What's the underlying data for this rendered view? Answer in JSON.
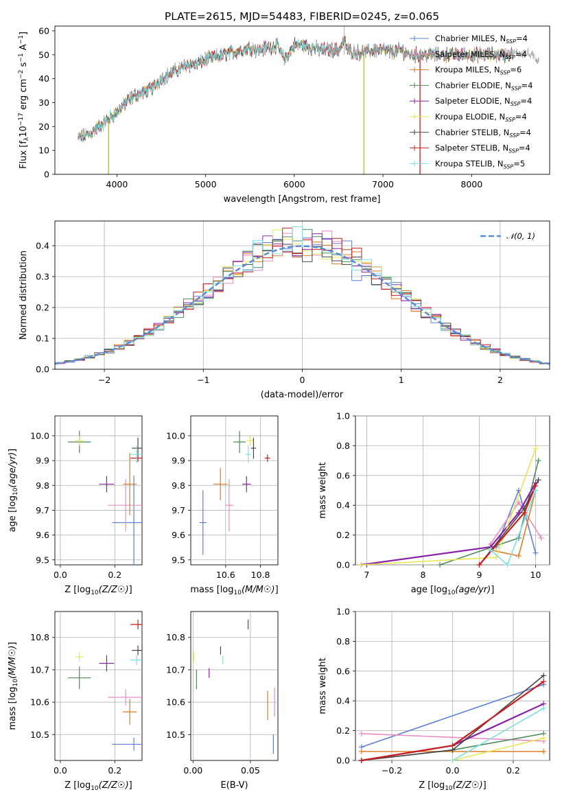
{
  "title": "PLATE=2615, MJD=54483, FIBERID=0245, z=0.065",
  "colors": {
    "Chabrier MILES": "#5b7fd6",
    "Salpeter MILES": "#e98bc4",
    "Kroupa MILES": "#e07b24",
    "Chabrier ELODIE": "#4e8a5a",
    "Salpeter ELODIE": "#8b22a6",
    "Kroupa ELODIE": "#e6e655",
    "Chabrier STELIB": "#444444",
    "Salpeter STELIB": "#c81e1e",
    "Kroupa STELIB": "#7ee0e0"
  },
  "spectrum": {
    "xlabel": "wavelength [Angstrom, rest frame]",
    "ylabel": "Flux [f_λ10^{-17} erg cm^{-2} s^{-1} A^{-1}]",
    "xlim": [
      3300,
      8880
    ],
    "ylim": [
      0,
      62
    ],
    "xticks": [
      4000,
      5000,
      6000,
      7000,
      8000
    ],
    "yticks": [
      0,
      10,
      20,
      30,
      40,
      50,
      60
    ],
    "legend_position": "top-right",
    "legend": [
      {
        "model": "Chabrier MILES",
        "nssp": "4"
      },
      {
        "model": "Salpeter MILES",
        "nssp": "4"
      },
      {
        "model": "Kroupa MILES",
        "nssp": "6"
      },
      {
        "model": "Chabrier ELODIE",
        "nssp": "4"
      },
      {
        "model": "Salpeter ELODIE",
        "nssp": "4"
      },
      {
        "model": "Kroupa ELODIE",
        "nssp": "4"
      },
      {
        "model": "Chabrier STELIB",
        "nssp": "4"
      },
      {
        "model": "Salpeter STELIB",
        "nssp": "4"
      },
      {
        "model": "Kroupa STELIB",
        "nssp": "5"
      }
    ]
  },
  "residuals": {
    "xlabel": "(data-model)/error",
    "ylabel": "Normed distribution",
    "xlim": [
      -2.5,
      2.5
    ],
    "ylim": [
      0,
      0.48
    ],
    "xticks": [
      -2,
      -1,
      0,
      1,
      2
    ],
    "yticks": [
      0.0,
      0.1,
      0.2,
      0.3,
      0.4
    ],
    "legend_label": "𝒩(0, 1)",
    "legend_position": "top-right"
  },
  "chart_data": [
    {
      "type": "line",
      "panel": "spectrum",
      "title": "PLATE=2615, MJD=54483, FIBERID=0245, z=0.065",
      "xlabel": "wavelength [Angstrom, rest frame]",
      "ylabel": "Flux [f_λ10^{-17} erg cm^{-2} s^{-1} A^{-1}]",
      "xlim": [
        3300,
        8880
      ],
      "ylim": [
        0,
        62
      ],
      "x": [
        3560,
        3700,
        3800,
        3900,
        4000,
        4100,
        4200,
        4300,
        4400,
        4500,
        4600,
        4700,
        4800,
        4900,
        5000,
        5100,
        5200,
        5300,
        5400,
        5500,
        5600,
        5700,
        5800,
        5890,
        6000,
        6100,
        6200,
        6300,
        6400,
        6500,
        6563,
        6600,
        6700,
        6800,
        6900,
        7000,
        7100,
        7200,
        7300,
        7400,
        7600,
        7800,
        8000,
        8200,
        8400,
        8600,
        8750
      ],
      "y": [
        15,
        17,
        20,
        23,
        26,
        30,
        33,
        34,
        36,
        40,
        42,
        44,
        46,
        46,
        48,
        49,
        50,
        51,
        52,
        53,
        52,
        53,
        54,
        48,
        54,
        54,
        53,
        52,
        52,
        52,
        56,
        52,
        51,
        51,
        52,
        52,
        51,
        52,
        50,
        50,
        50,
        50,
        50,
        50,
        50,
        51,
        48
      ]
    },
    {
      "type": "bar",
      "panel": "residual-histogram",
      "xlabel": "(data-model)/error",
      "ylabel": "Normed distribution",
      "xlim": [
        -2.5,
        2.5
      ],
      "ylim": [
        0,
        0.48
      ],
      "bin_width": 0.1,
      "reference_curve": "N(0,1)"
    },
    {
      "type": "scatter",
      "panel": "age-vs-Z",
      "xlabel": "Z [log10(Z/Z☉)]",
      "ylabel": "age [log10(age/yr)]",
      "xlim": [
        -0.02,
        0.3
      ],
      "ylim": [
        9.48,
        10.08
      ],
      "points": [
        {
          "model": "Chabrier MILES",
          "x": 0.27,
          "xerr": 0.16,
          "y": 9.65,
          "yerr": 0.38
        },
        {
          "model": "Salpeter MILES",
          "x": 0.24,
          "xerr": 0.13,
          "y": 9.72,
          "yerr": 0.21
        },
        {
          "model": "Kroupa MILES",
          "x": 0.255,
          "xerr": 0.05,
          "y": 9.805,
          "yerr": 0.25
        },
        {
          "model": "Chabrier ELODIE",
          "x": 0.07,
          "xerr": 0.085,
          "y": 9.975,
          "yerr": 0.09
        },
        {
          "model": "Salpeter ELODIE",
          "x": 0.17,
          "xerr": 0.055,
          "y": 9.805,
          "yerr": 0.065
        },
        {
          "model": "Kroupa ELODIE",
          "x": 0.07,
          "xerr": 0.03,
          "y": 9.98,
          "yerr": 0.04
        },
        {
          "model": "Chabrier STELIB",
          "x": 0.285,
          "xerr": 0.045,
          "y": 9.95,
          "yerr": 0.085
        },
        {
          "model": "Salpeter STELIB",
          "x": 0.285,
          "xerr": 0.055,
          "y": 9.91,
          "yerr": 0.03
        },
        {
          "model": "Kroupa STELIB",
          "x": 0.28,
          "xerr": 0.045,
          "y": 9.925,
          "yerr": 0.07
        }
      ]
    },
    {
      "type": "scatter",
      "panel": "age-vs-mass",
      "xlabel": "mass [log10(M/M☉)]",
      "ylabel": "",
      "xlim": [
        10.4,
        10.9
      ],
      "ylim": [
        9.48,
        10.08
      ],
      "points": [
        {
          "model": "Chabrier MILES",
          "x": 10.47,
          "xerr": 0.04,
          "y": 9.65,
          "yerr": 0.26
        },
        {
          "model": "Salpeter MILES",
          "x": 10.62,
          "xerr": 0.05,
          "y": 9.72,
          "yerr": 0.21
        },
        {
          "model": "Kroupa MILES",
          "x": 10.57,
          "xerr": 0.08,
          "y": 9.805,
          "yerr": 0.13
        },
        {
          "model": "Chabrier ELODIE",
          "x": 10.68,
          "xerr": 0.07,
          "y": 9.975,
          "yerr": 0.09
        },
        {
          "model": "Salpeter ELODIE",
          "x": 10.72,
          "xerr": 0.05,
          "y": 9.805,
          "yerr": 0.065
        },
        {
          "model": "Kroupa ELODIE",
          "x": 10.74,
          "xerr": 0.04,
          "y": 9.98,
          "yerr": 0.04
        },
        {
          "model": "Chabrier STELIB",
          "x": 10.76,
          "xerr": 0.03,
          "y": 9.95,
          "yerr": 0.085
        },
        {
          "model": "Salpeter STELIB",
          "x": 10.84,
          "xerr": 0.03,
          "y": 9.91,
          "yerr": 0.03
        },
        {
          "model": "Kroupa STELIB",
          "x": 10.73,
          "xerr": 0.03,
          "y": 9.925,
          "yerr": 0.07
        }
      ]
    },
    {
      "type": "line",
      "panel": "mass-weight-vs-age",
      "xlabel": "age [log10(age/yr)]",
      "ylabel": "mass weight",
      "xlim": [
        6.8,
        10.25
      ],
      "ylim": [
        0,
        1.0
      ],
      "series": [
        {
          "name": "Chabrier MILES",
          "x": [
            9.3,
            9.7,
            10.0
          ],
          "y": [
            0.12,
            0.5,
            0.08
          ]
        },
        {
          "name": "Salpeter MILES",
          "x": [
            9.2,
            9.7,
            10.1
          ],
          "y": [
            0.14,
            0.42,
            0.18
          ]
        },
        {
          "name": "Kroupa MILES",
          "x": [
            9.2,
            9.7,
            10.0
          ],
          "y": [
            0.1,
            0.06,
            0.5
          ]
        },
        {
          "name": "Chabrier ELODIE",
          "x": [
            8.3,
            9.7,
            10.05
          ],
          "y": [
            0.0,
            0.18,
            0.7
          ]
        },
        {
          "name": "Salpeter ELODIE",
          "x": [
            6.9,
            9.2,
            9.7,
            10.0
          ],
          "y": [
            0.0,
            0.12,
            0.35,
            0.55
          ]
        },
        {
          "name": "Kroupa ELODIE",
          "x": [
            6.9,
            9.3,
            10.0
          ],
          "y": [
            0.0,
            0.05,
            0.78
          ]
        },
        {
          "name": "Chabrier STELIB",
          "x": [
            9.0,
            9.8,
            10.05
          ],
          "y": [
            0.0,
            0.38,
            0.57
          ]
        },
        {
          "name": "Salpeter STELIB",
          "x": [
            9.0,
            9.8,
            10.0
          ],
          "y": [
            0.0,
            0.35,
            0.53
          ]
        },
        {
          "name": "Kroupa STELIB",
          "x": [
            9.2,
            9.5,
            10.0
          ],
          "y": [
            0.1,
            0.0,
            0.5
          ]
        }
      ]
    },
    {
      "type": "scatter",
      "panel": "mass-vs-Z",
      "xlabel": "Z [log10(Z/Z☉)]",
      "ylabel": "mass [log10(M/M☉)]",
      "xlim": [
        -0.02,
        0.3
      ],
      "ylim": [
        10.42,
        10.88
      ],
      "points": [
        {
          "model": "Chabrier MILES",
          "x": 0.27,
          "xerr": 0.16,
          "y": 10.47,
          "yerr": 0.04
        },
        {
          "model": "Salpeter MILES",
          "x": 0.24,
          "xerr": 0.13,
          "y": 10.615,
          "yerr": 0.05
        },
        {
          "model": "Kroupa MILES",
          "x": 0.255,
          "xerr": 0.05,
          "y": 10.57,
          "yerr": 0.08
        },
        {
          "model": "Chabrier ELODIE",
          "x": 0.07,
          "xerr": 0.085,
          "y": 10.675,
          "yerr": 0.07
        },
        {
          "model": "Salpeter ELODIE",
          "x": 0.17,
          "xerr": 0.055,
          "y": 10.72,
          "yerr": 0.05
        },
        {
          "model": "Kroupa ELODIE",
          "x": 0.07,
          "xerr": 0.03,
          "y": 10.74,
          "yerr": 0.03
        },
        {
          "model": "Chabrier STELIB",
          "x": 0.285,
          "xerr": 0.045,
          "y": 10.76,
          "yerr": 0.03
        },
        {
          "model": "Salpeter STELIB",
          "x": 0.285,
          "xerr": 0.055,
          "y": 10.84,
          "yerr": 0.03
        },
        {
          "model": "Kroupa STELIB",
          "x": 0.28,
          "xerr": 0.045,
          "y": 10.73,
          "yerr": 0.03
        }
      ]
    },
    {
      "type": "scatter",
      "panel": "mass-vs-EBV",
      "xlabel": "E(B-V)",
      "ylabel": "",
      "xlim": [
        -0.002,
        0.074
      ],
      "ylim": [
        10.42,
        10.88
      ],
      "points": [
        {
          "model": "Chabrier MILES",
          "x": 0.07,
          "y": 10.47,
          "yerr": 0.06
        },
        {
          "model": "Salpeter MILES",
          "x": 0.071,
          "y": 10.6,
          "yerr": 0.09
        },
        {
          "model": "Kroupa MILES",
          "x": 0.065,
          "y": 10.59,
          "yerr": 0.09
        },
        {
          "model": "Chabrier ELODIE",
          "x": 0.003,
          "y": 10.67,
          "yerr": 0.06
        },
        {
          "model": "Salpeter ELODIE",
          "x": 0.014,
          "y": 10.69,
          "yerr": 0.03
        },
        {
          "model": "Kroupa ELODIE",
          "x": 0.0005,
          "y": 10.74,
          "yerr": 0.03
        },
        {
          "model": "Chabrier STELIB",
          "x": 0.024,
          "y": 10.76,
          "yerr": 0.025
        },
        {
          "model": "Salpeter STELIB",
          "x": 0.048,
          "y": 10.84,
          "yerr": 0.03
        },
        {
          "model": "Kroupa STELIB",
          "x": 0.026,
          "y": 10.73,
          "yerr": 0.025
        }
      ]
    },
    {
      "type": "line",
      "panel": "mass-weight-vs-Z",
      "xlabel": "Z [log10(Z/Z☉)]",
      "ylabel": "mass weight",
      "xlim": [
        -0.32,
        0.32
      ],
      "ylim": [
        0,
        1.0
      ],
      "series": [
        {
          "name": "Chabrier MILES",
          "x": [
            -0.3,
            0.3
          ],
          "y": [
            0.09,
            0.51
          ]
        },
        {
          "name": "Salpeter MILES",
          "x": [
            -0.3,
            0.3
          ],
          "y": [
            0.18,
            0.13
          ]
        },
        {
          "name": "Kroupa MILES",
          "x": [
            -0.3,
            0.3
          ],
          "y": [
            0.06,
            0.06
          ]
        },
        {
          "name": "Chabrier ELODIE",
          "x": [
            -0.3,
            0.0,
            0.3
          ],
          "y": [
            0.0,
            0.07,
            0.18
          ]
        },
        {
          "name": "Salpeter ELODIE",
          "x": [
            -0.3,
            0.0,
            0.3
          ],
          "y": [
            0.0,
            0.1,
            0.38
          ]
        },
        {
          "name": "Kroupa ELODIE",
          "x": [
            0.0,
            0.3
          ],
          "y": [
            0.0,
            0.15
          ]
        },
        {
          "name": "Chabrier STELIB",
          "x": [
            -0.3,
            0.0,
            0.3
          ],
          "y": [
            0.0,
            0.07,
            0.57
          ]
        },
        {
          "name": "Salpeter STELIB",
          "x": [
            -0.3,
            0.0,
            0.3
          ],
          "y": [
            0.0,
            0.1,
            0.53
          ]
        },
        {
          "name": "Kroupa STELIB",
          "x": [
            0.0,
            0.3
          ],
          "y": [
            0.0,
            0.35
          ]
        }
      ]
    }
  ],
  "scatter_panels": {
    "ageZ": {
      "xlabel": "Z [log10(Z/Z☉)]",
      "ylabel": "age [log10(age/yr)]",
      "xticks": [
        "0.0",
        "0.2"
      ],
      "yticks": [
        "9.5",
        "9.6",
        "9.7",
        "9.8",
        "9.9",
        "10.0"
      ]
    },
    "ageMass": {
      "xlabel": "mass [log10(M/M☉)]",
      "xticks": [
        "10.6",
        "10.8"
      ],
      "yticks": [
        "9.5",
        "9.6",
        "9.7",
        "9.8",
        "9.9",
        "10.0"
      ]
    },
    "massZ": {
      "xlabel": "Z [log10(Z/Z☉)]",
      "ylabel": "mass [log10(M/M☉)]",
      "xticks": [
        "0.0",
        "0.2"
      ],
      "yticks": [
        "10.5",
        "10.6",
        "10.7",
        "10.8"
      ]
    },
    "massEBV": {
      "xlabel": "E(B-V)",
      "xticks": [
        "0.00",
        "0.05"
      ],
      "yticks": [
        "10.5",
        "10.6",
        "10.7",
        "10.8"
      ]
    },
    "wAge": {
      "xlabel": "age [log10(age/yr)]",
      "ylabel": "mass weight",
      "xticks": [
        "7",
        "8",
        "9",
        "10"
      ],
      "yticks": [
        "0.0",
        "0.2",
        "0.4",
        "0.6",
        "0.8",
        "1.0"
      ]
    },
    "wZ": {
      "xlabel": "Z [log10(Z/Z☉)]",
      "ylabel": "mass weight",
      "xticks": [
        "−0.2",
        "0.0",
        "0.2"
      ],
      "yticks": [
        "0.0",
        "0.2",
        "0.4",
        "0.6",
        "0.8",
        "1.0"
      ]
    }
  }
}
